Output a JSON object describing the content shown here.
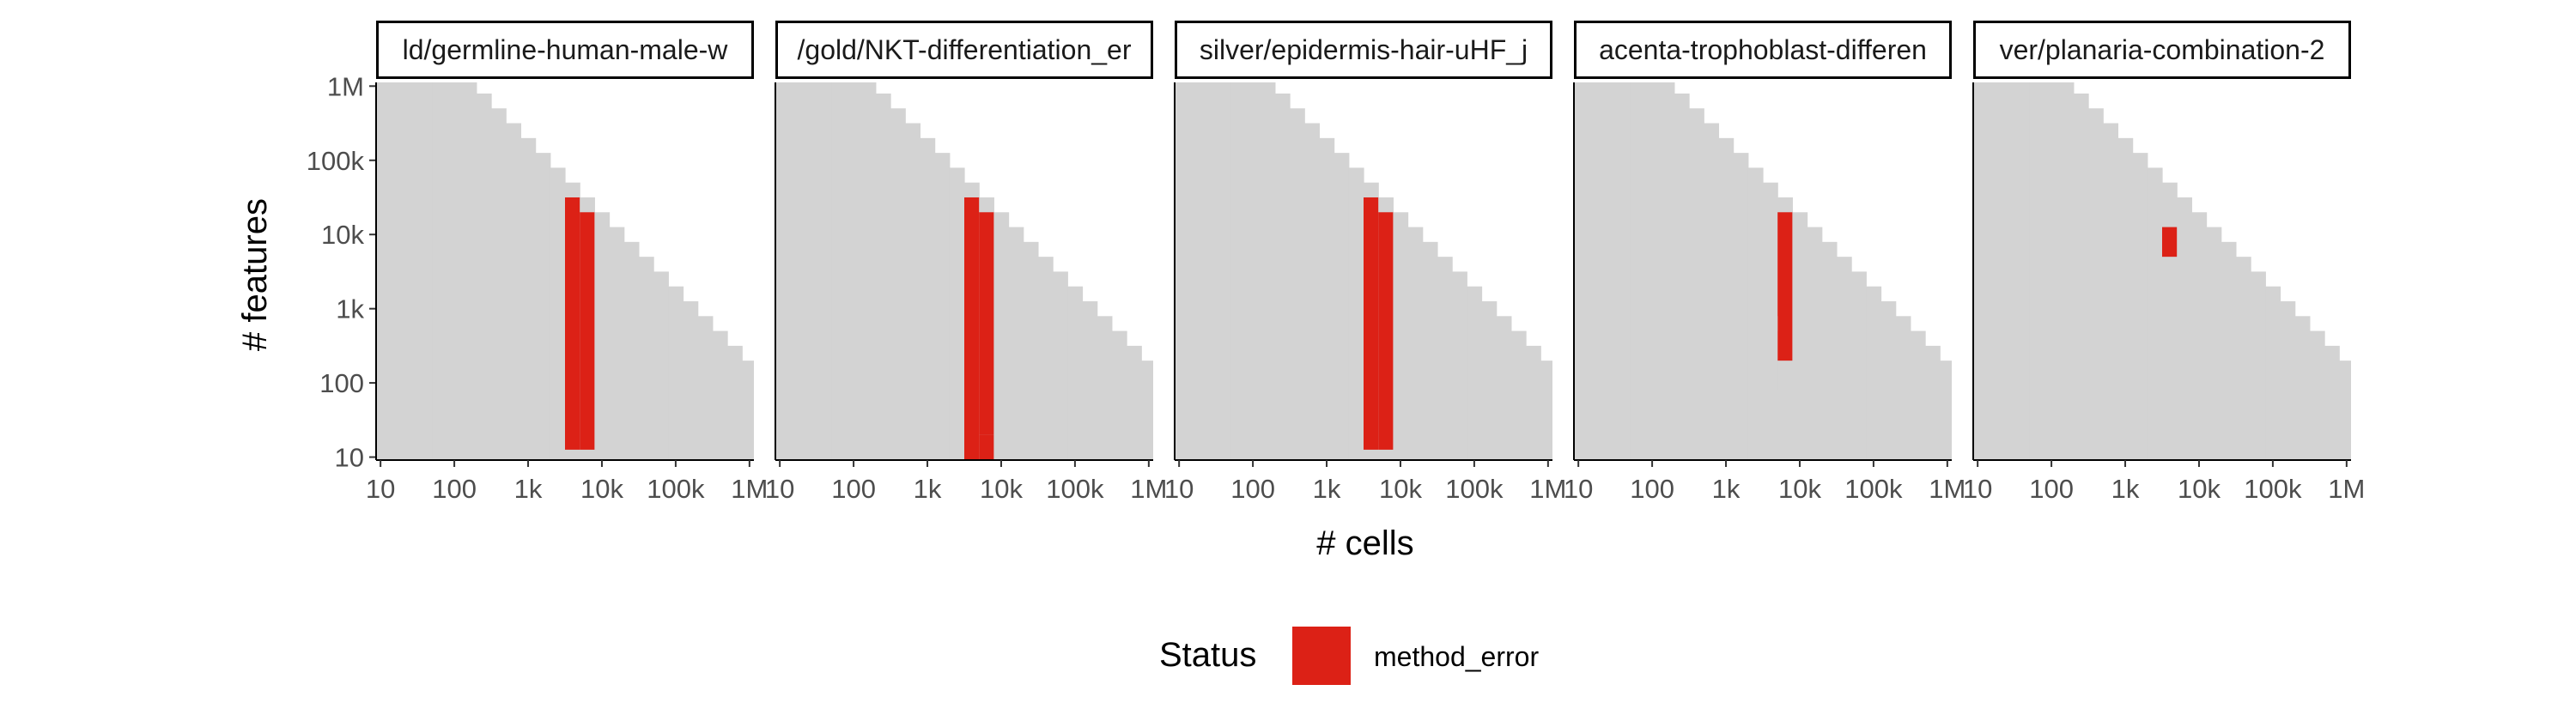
{
  "chart_data": {
    "type": "heatmap",
    "x_axis": {
      "label": "# cells",
      "scale": "log10",
      "range": [
        10,
        1000000
      ],
      "ticks": [
        10,
        100,
        1000,
        10000,
        100000,
        1000000
      ],
      "tick_labels": [
        "10",
        "100",
        "1k",
        "10k",
        "100k",
        "1M"
      ]
    },
    "y_axis": {
      "label": "# features",
      "scale": "log10",
      "range": [
        10,
        1000000
      ],
      "ticks": [
        10,
        100,
        1000,
        10000,
        100000,
        1000000
      ],
      "tick_labels": [
        "10",
        "100",
        "1k",
        "10k",
        "100k",
        "1M"
      ]
    },
    "legend": {
      "title": "Status",
      "position": "bottom",
      "entries": [
        {
          "label": "method_error",
          "color": "#dc2116"
        }
      ]
    },
    "background_status_color": "#d3d3d3",
    "grid": false,
    "cell_grid": {
      "log10_step": 0.2,
      "x_log10_start": 1.0,
      "y_log10_start": 1.2,
      "n_x_cols": 26,
      "max_y_exp_per_column": [
        6.0,
        6.0,
        6.0,
        6.0,
        6.0,
        6.0,
        6.0,
        5.8,
        5.6,
        5.4,
        5.2,
        5.0,
        4.8,
        4.6,
        4.4,
        4.2,
        4.0,
        3.8,
        3.6,
        3.4,
        3.2,
        3.0,
        2.8,
        2.6,
        2.4,
        2.2
      ]
    },
    "panels": [
      {
        "title": "ld/germline-human-male-w",
        "errors": [
          {
            "x_exp": 3.6,
            "y_from": 1.2,
            "y_to": 4.4
          },
          {
            "x_exp": 3.8,
            "y_from": 1.2,
            "y_to": 4.2
          }
        ]
      },
      {
        "title": "/gold/NKT-differentiation_er",
        "errors": [
          {
            "x_exp": 3.6,
            "y_from": 1.0,
            "y_to": 4.4
          },
          {
            "x_exp": 3.8,
            "y_from": 1.0,
            "y_to": 1.2
          },
          {
            "x_exp": 3.8,
            "y_from": 1.4,
            "y_to": 4.2
          }
        ]
      },
      {
        "title": "silver/epidermis-hair-uHF_j",
        "errors": [
          {
            "x_exp": 3.6,
            "y_from": 1.2,
            "y_to": 4.4
          },
          {
            "x_exp": 3.8,
            "y_from": 1.2,
            "y_to": 4.2
          }
        ]
      },
      {
        "title": "acenta-trophoblast-differen",
        "errors": [
          {
            "x_exp": 3.8,
            "y_from": 2.4,
            "y_to": 4.2
          },
          {
            "x_exp": 3.6,
            "y_from": 2.4,
            "y_to": 2.6
          },
          {
            "x_exp": 3.6,
            "y_from": 2.8,
            "y_to": 2.0
          }
        ]
      },
      {
        "title": "ver/planaria-combination-2",
        "errors": [
          {
            "x_exp": 3.6,
            "y_from": 3.8,
            "y_to": 4.0
          }
        ]
      }
    ]
  }
}
